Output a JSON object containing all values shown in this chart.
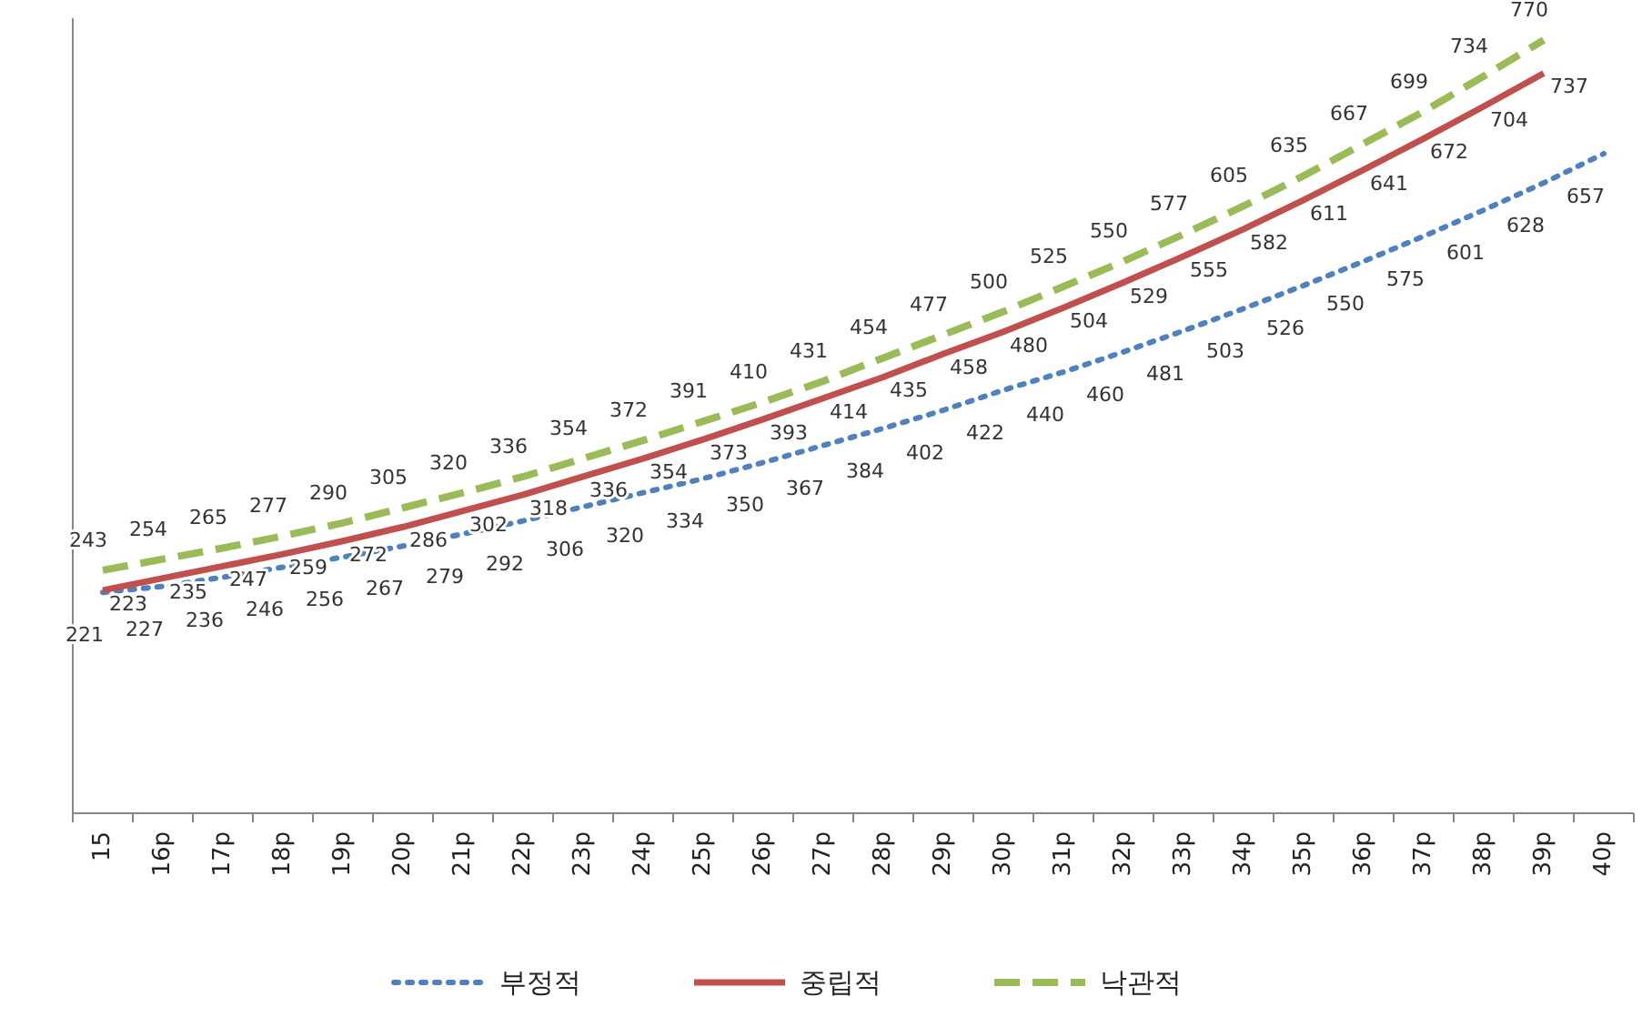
{
  "chart_data": {
    "type": "line",
    "categories": [
      "15",
      "16p",
      "17p",
      "18p",
      "19p",
      "20p",
      "21p",
      "22p",
      "23p",
      "24p",
      "25p",
      "26p",
      "27p",
      "28p",
      "29p",
      "30p",
      "31p",
      "32p",
      "33p",
      "34p",
      "35p",
      "36p",
      "37p",
      "38p",
      "39p",
      "40p"
    ],
    "series": [
      {
        "name": "부정적",
        "color": "#4f81bd",
        "line_style": "dotted",
        "values": [
          221,
          227,
          236,
          246,
          256,
          267,
          279,
          292,
          306,
          320,
          334,
          350,
          367,
          384,
          402,
          422,
          440,
          460,
          481,
          503,
          526,
          550,
          575,
          601,
          628,
          657
        ]
      },
      {
        "name": "중립적",
        "color": "#c0504d",
        "line_style": "solid",
        "values": [
          223,
          235,
          247,
          259,
          272,
          286,
          302,
          318,
          336,
          354,
          373,
          393,
          414,
          435,
          458,
          480,
          504,
          529,
          555,
          582,
          611,
          641,
          672,
          704,
          737,
          null
        ]
      },
      {
        "name": "낙관적",
        "color": "#9bbb59",
        "line_style": "dashed",
        "values": [
          243,
          254,
          265,
          277,
          290,
          305,
          320,
          336,
          354,
          372,
          391,
          410,
          431,
          454,
          477,
          500,
          525,
          550,
          577,
          605,
          635,
          667,
          699,
          734,
          770,
          null
        ]
      }
    ],
    "data_labels": true,
    "tick_labels": "x",
    "grid": false,
    "legend": "bottom",
    "marker": "none"
  }
}
